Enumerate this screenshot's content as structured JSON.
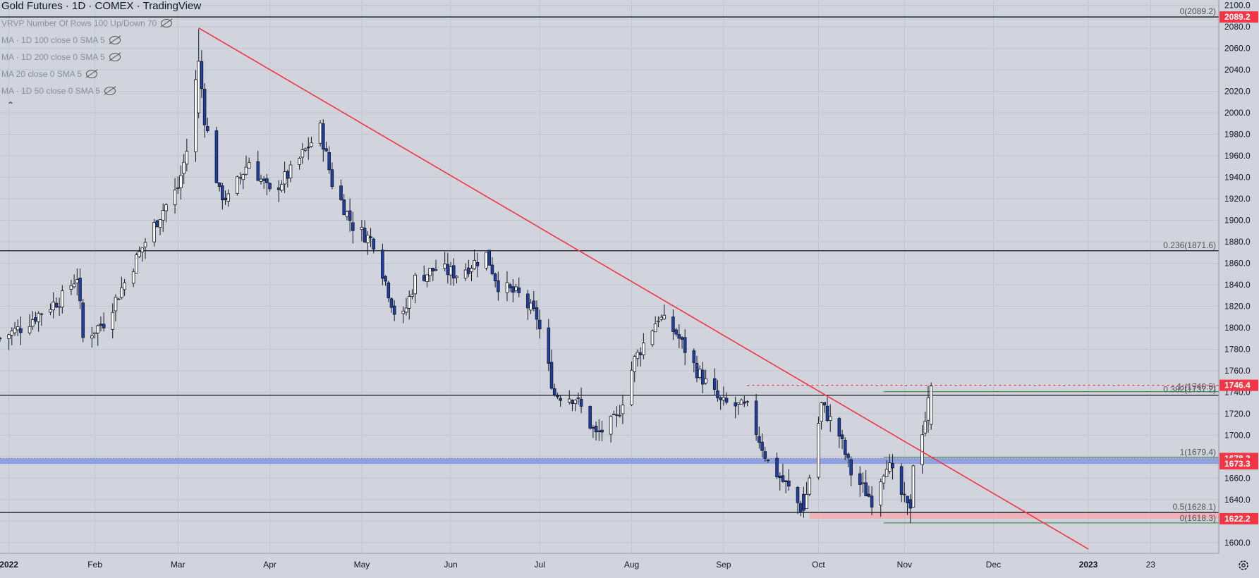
{
  "header": {
    "title": "Gold Futures · 1D · COMEX · TradingView"
  },
  "indicators": [
    {
      "label": "VRVP Number Of Rows 100 Up/Down 70",
      "icon": "eye-hidden-icon"
    },
    {
      "label": "MA · 1D 100 close 0 SMA 5",
      "icon": "eye-hidden-icon"
    },
    {
      "label": "MA · 1D 200 close 0 SMA 5",
      "icon": "eye-hidden-icon"
    },
    {
      "label": "MA 20 close 0 SMA 5",
      "icon": "eye-hidden-icon"
    },
    {
      "label": "MA · 1D 50 close 0 SMA 5",
      "icon": "eye-hidden-icon"
    }
  ],
  "collapse_icon": "chevron-up-icon",
  "settings_icon": "gear-icon",
  "colors": {
    "background": "#d1d4dc",
    "grid": "#c2c6cf",
    "up_candle": "#ffffff",
    "down_candle": "#1f3fa6",
    "candle_outline": "#131722",
    "trendline": "#f23645",
    "support_lines": "#131722",
    "fib": "#2e7d32",
    "zone_blue": "#7b8fe0",
    "zone_red": "#f7a8ae"
  },
  "chart_data": {
    "type": "candlestick",
    "title": "Gold Futures · 1D · COMEX · TradingView",
    "ylim": [
      1590,
      2105
    ],
    "y_ticks": [
      1600,
      1620,
      1640,
      1660,
      1680,
      1700,
      1720,
      1740,
      1760,
      1780,
      1800,
      1820,
      1840,
      1860,
      1880,
      1900,
      1920,
      1940,
      1960,
      1980,
      2000,
      2020,
      2040,
      2060,
      2080,
      2100
    ],
    "x_labels": [
      {
        "label": "2022",
        "date": "2022-01-03"
      },
      {
        "label": "Feb",
        "date": "2022-02-01"
      },
      {
        "label": "Mar",
        "date": "2022-03-01"
      },
      {
        "label": "Apr",
        "date": "2022-04-01"
      },
      {
        "label": "May",
        "date": "2022-05-02"
      },
      {
        "label": "Jun",
        "date": "2022-06-01"
      },
      {
        "label": "Jul",
        "date": "2022-07-01"
      },
      {
        "label": "Aug",
        "date": "2022-08-01"
      },
      {
        "label": "Sep",
        "date": "2022-09-01"
      },
      {
        "label": "Oct",
        "date": "2022-10-03"
      },
      {
        "label": "Nov",
        "date": "2022-11-01"
      },
      {
        "label": "Dec",
        "date": "2022-12-01"
      },
      {
        "label": "2023",
        "date": "2023-01-02"
      },
      {
        "label": "23",
        "date": "2023-01-23"
      }
    ],
    "x_range": [
      "2021-12-31",
      "2023-02-15"
    ],
    "series_anchors": [
      {
        "date": "2021-12-31",
        "value": 1790
      },
      {
        "date": "2022-01-07",
        "value": 1800
      },
      {
        "date": "2022-01-14",
        "value": 1815
      },
      {
        "date": "2022-01-21",
        "value": 1828
      },
      {
        "date": "2022-01-26",
        "value": 1848
      },
      {
        "date": "2022-01-28",
        "value": 1790
      },
      {
        "date": "2022-02-04",
        "value": 1805
      },
      {
        "date": "2022-02-11",
        "value": 1842
      },
      {
        "date": "2022-02-18",
        "value": 1880
      },
      {
        "date": "2022-02-24",
        "value": 1910
      },
      {
        "date": "2022-03-01",
        "value": 1930
      },
      {
        "date": "2022-03-04",
        "value": 1965
      },
      {
        "date": "2022-03-08",
        "value": 2050
      },
      {
        "date": "2022-03-10",
        "value": 1995
      },
      {
        "date": "2022-03-15",
        "value": 1925
      },
      {
        "date": "2022-03-18",
        "value": 1920
      },
      {
        "date": "2022-03-25",
        "value": 1955
      },
      {
        "date": "2022-04-01",
        "value": 1925
      },
      {
        "date": "2022-04-08",
        "value": 1945
      },
      {
        "date": "2022-04-18",
        "value": 1985
      },
      {
        "date": "2022-04-22",
        "value": 1935
      },
      {
        "date": "2022-04-29",
        "value": 1895
      },
      {
        "date": "2022-05-06",
        "value": 1880
      },
      {
        "date": "2022-05-13",
        "value": 1815
      },
      {
        "date": "2022-05-16",
        "value": 1810
      },
      {
        "date": "2022-05-20",
        "value": 1845
      },
      {
        "date": "2022-05-27",
        "value": 1855
      },
      {
        "date": "2022-06-03",
        "value": 1850
      },
      {
        "date": "2022-06-13",
        "value": 1868
      },
      {
        "date": "2022-06-17",
        "value": 1840
      },
      {
        "date": "2022-06-24",
        "value": 1830
      },
      {
        "date": "2022-06-30",
        "value": 1810
      },
      {
        "date": "2022-07-06",
        "value": 1738
      },
      {
        "date": "2022-07-13",
        "value": 1735
      },
      {
        "date": "2022-07-20",
        "value": 1700
      },
      {
        "date": "2022-07-27",
        "value": 1715
      },
      {
        "date": "2022-08-02",
        "value": 1770
      },
      {
        "date": "2022-08-10",
        "value": 1810
      },
      {
        "date": "2022-08-16",
        "value": 1795
      },
      {
        "date": "2022-08-23",
        "value": 1760
      },
      {
        "date": "2022-08-31",
        "value": 1730
      },
      {
        "date": "2022-09-09",
        "value": 1725
      },
      {
        "date": "2022-09-16",
        "value": 1675
      },
      {
        "date": "2022-09-23",
        "value": 1650
      },
      {
        "date": "2022-09-28",
        "value": 1628
      },
      {
        "date": "2022-10-04",
        "value": 1728
      },
      {
        "date": "2022-10-10",
        "value": 1700
      },
      {
        "date": "2022-10-14",
        "value": 1665
      },
      {
        "date": "2022-10-21",
        "value": 1640
      },
      {
        "date": "2022-10-26",
        "value": 1675
      },
      {
        "date": "2022-11-02",
        "value": 1632
      },
      {
        "date": "2022-11-04",
        "value": 1675
      },
      {
        "date": "2022-11-08",
        "value": 1715
      },
      {
        "date": "2022-11-10",
        "value": 1746
      }
    ],
    "special_candles": [
      {
        "date": "2022-03-08",
        "open": 2000,
        "high": 2078,
        "low": 1995,
        "close": 2048
      },
      {
        "date": "2022-09-28",
        "open": 1645,
        "high": 1652,
        "low": 1623,
        "close": 1630
      },
      {
        "date": "2022-11-03",
        "open": 1640,
        "high": 1645,
        "low": 1618,
        "close": 1632
      },
      {
        "date": "2022-11-10",
        "open": 1710,
        "high": 1749,
        "low": 1705,
        "close": 1746
      }
    ],
    "horizontal_lines": [
      {
        "value": 2089.2,
        "label": "0(2089.2)"
      },
      {
        "value": 1871.6,
        "label": "0.236(1871.6)"
      },
      {
        "value": 1737.2,
        "label": "0.382(1737.2)"
      },
      {
        "value": 1628.1,
        "label": "0.5(1628.1)"
      }
    ],
    "fib_levels": [
      {
        "value": 1740.5,
        "label": "1.(1740.5)",
        "from": "2022-10-25"
      },
      {
        "value": 1679.4,
        "label": "1(1679.4)",
        "from": "2022-10-25"
      },
      {
        "value": 1618.3,
        "label": "0(1618.3)",
        "from": "2022-10-25"
      }
    ],
    "dotted_levels": [
      {
        "value": 1746.4,
        "from": "2022-09-09"
      }
    ],
    "zones": [
      {
        "top": 1678.3,
        "bottom": 1673.3,
        "from": "2021-12-31",
        "color": "blue"
      },
      {
        "top": 1628.1,
        "bottom": 1622.2,
        "from": "2022-09-30",
        "color": "red"
      }
    ],
    "trendline": {
      "from": {
        "date": "2022-03-08",
        "value": 2079
      },
      "to": {
        "date": "2023-01-02",
        "value": 1594
      }
    },
    "price_labels": [
      {
        "value": 2089.2,
        "text": "2089.2",
        "bg": "#f23645"
      },
      {
        "value": 1746.4,
        "text": "1746.4",
        "bg": "#f23645"
      },
      {
        "value": 1678.3,
        "text": "1678.3",
        "bg": "#f23645"
      },
      {
        "value": 1673.3,
        "text": "1673.3",
        "bg": "#f23645"
      },
      {
        "value": 1622.2,
        "text": "1622.2",
        "bg": "#f23645"
      }
    ]
  }
}
